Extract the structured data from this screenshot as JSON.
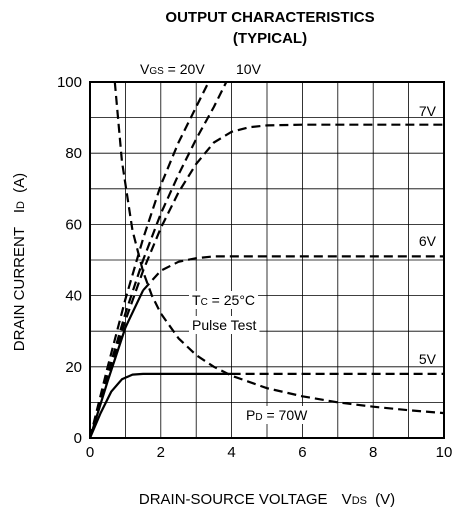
{
  "chart_data": {
    "type": "line",
    "title": "OUTPUT CHARACTERISTICS",
    "subtitle": "(TYPICAL)",
    "xlabel": "DRAIN-SOURCE VOLTAGE",
    "xlabel_symbol": "V",
    "xlabel_symbol_sub": "DS",
    "xlabel_unit": "(V)",
    "ylabel": "DRAIN CURRENT",
    "ylabel_symbol": "I",
    "ylabel_symbol_sub": "D",
    "ylabel_unit": "(A)",
    "xlim": [
      0,
      10
    ],
    "ylim": [
      0,
      100
    ],
    "xticks": [
      0,
      2,
      4,
      6,
      8,
      10
    ],
    "yticks": [
      0,
      20,
      40,
      60,
      80,
      100
    ],
    "grid": true,
    "minor_grid_x_step": 1,
    "minor_grid_y_step": 10,
    "annotations": {
      "tc": {
        "symbol": "T",
        "sub": "C",
        "rest": " = 25°C"
      },
      "pulse": "Pulse Test",
      "pd": {
        "symbol": "P",
        "sub": "D",
        "rest": " = 70W"
      }
    },
    "series": [
      {
        "name": "10V",
        "style": "dashed",
        "x": [
          0,
          0.5,
          1.0,
          1.5,
          2.0,
          2.5,
          3.0,
          3.5,
          3.85
        ],
        "y": [
          0,
          18,
          35,
          50,
          63,
          74,
          84,
          93,
          100
        ]
      },
      {
        "name": "VGS = 20V",
        "label": {
          "symbol": "V",
          "sub": "GS",
          "rest": " = 20V"
        },
        "style": "dashed",
        "x": [
          0,
          0.5,
          1.0,
          1.5,
          2.0,
          2.5,
          3.0,
          3.35
        ],
        "y": [
          0,
          20,
          39,
          56,
          71,
          83,
          93,
          100
        ]
      },
      {
        "name": "7V",
        "style": "dashed",
        "x": [
          0,
          0.5,
          1.0,
          1.5,
          2.0,
          2.5,
          3.0,
          3.5,
          4.0,
          4.5,
          5.0,
          6.0,
          8.0,
          10.0
        ],
        "y": [
          0,
          17,
          33,
          47,
          59,
          69,
          77,
          83,
          86,
          87.3,
          87.8,
          88,
          88,
          88
        ]
      },
      {
        "name": "6V",
        "style": "mixed",
        "solid_until_x": 1.5,
        "x": [
          0,
          0.5,
          1.0,
          1.5,
          2.0,
          2.5,
          3.0,
          3.5,
          4.0,
          5.0,
          6.0,
          8.0,
          10.0
        ],
        "y": [
          0,
          16,
          31,
          41.5,
          47,
          49.5,
          50.5,
          51,
          51,
          51,
          51,
          51,
          51
        ]
      },
      {
        "name": "5V",
        "style": "mixed",
        "solid_until_x": 4.0,
        "x": [
          0,
          0.3,
          0.6,
          0.9,
          1.2,
          1.5,
          2.0,
          3.0,
          4.0,
          6.0,
          8.0,
          10.0
        ],
        "y": [
          0,
          7,
          13,
          16.5,
          17.8,
          18,
          18,
          18,
          18,
          18,
          18,
          18
        ]
      },
      {
        "name": "PD = 70W",
        "style": "dashed",
        "x": [
          0.7,
          0.9,
          1.2,
          1.5,
          1.75,
          2.0,
          2.5,
          3.0,
          3.5,
          4.0,
          5.0,
          6.0,
          7.0,
          8.0,
          9.0,
          10.0
        ],
        "y": [
          100,
          77.8,
          58.3,
          46.7,
          40,
          35,
          28,
          23.3,
          20,
          17.5,
          14,
          11.7,
          10,
          8.8,
          7.8,
          7
        ]
      }
    ]
  }
}
